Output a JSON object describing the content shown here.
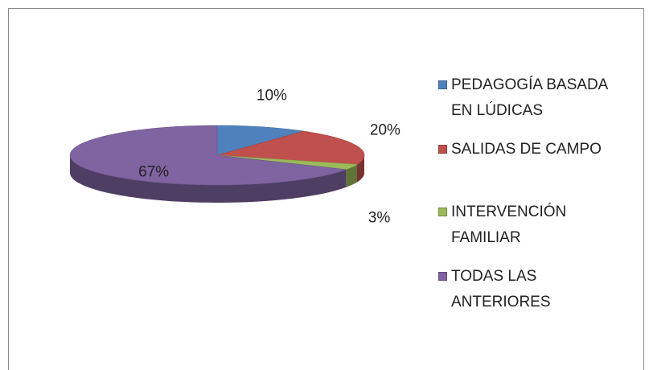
{
  "chart_data": {
    "type": "pie",
    "categories": [
      "PEDAGOGÍA BASADA EN LÚDICAS",
      "SALIDAS DE CAMPO",
      "INTERVENCIÓN FAMILIAR",
      "TODAS LAS ANTERIORES"
    ],
    "values": [
      10,
      20,
      3,
      67
    ],
    "value_labels": [
      "10%",
      "20%",
      "3%",
      "67%"
    ],
    "colors": [
      "#4f81bd",
      "#c0504d",
      "#9bbb59",
      "#8064a2"
    ],
    "legend": "right"
  }
}
